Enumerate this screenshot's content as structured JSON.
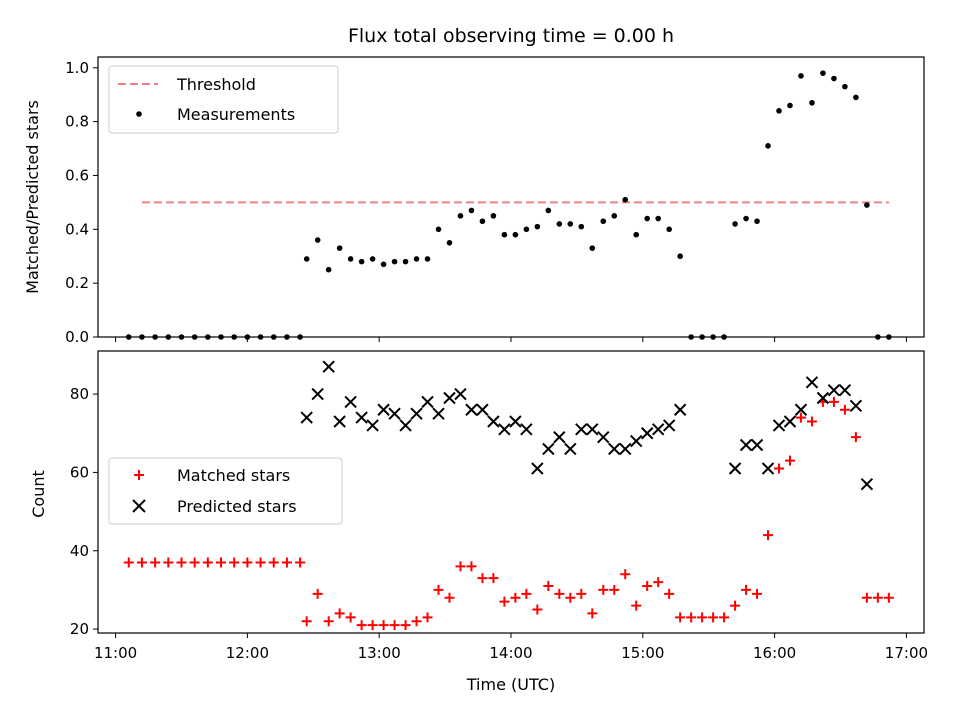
{
  "chart_data": [
    {
      "type": "scatter",
      "title": "Flux total observing time = 0.00 h",
      "xlabel": "",
      "ylabel": "Matched/Predicted stars",
      "xlim": [
        "10:52",
        "17:08"
      ],
      "ylim": [
        0,
        1.04
      ],
      "yticks": [
        "0.0",
        "0.2",
        "0.4",
        "0.6",
        "0.8",
        "1.0"
      ],
      "threshold": {
        "name": "Threshold",
        "value": 0.5,
        "x_start": "11:12",
        "x_end": "16:52",
        "color": "#f08080",
        "style": "dashed"
      },
      "series": [
        {
          "name": "Measurements",
          "color": "#000000",
          "marker": "dot",
          "points": [
            [
              "11:06",
              0
            ],
            [
              "11:12",
              0
            ],
            [
              "11:18",
              0
            ],
            [
              "11:24",
              0
            ],
            [
              "11:30",
              0
            ],
            [
              "11:36",
              0
            ],
            [
              "11:42",
              0
            ],
            [
              "11:48",
              0
            ],
            [
              "11:54",
              0
            ],
            [
              "12:00",
              0
            ],
            [
              "12:06",
              0
            ],
            [
              "12:12",
              0
            ],
            [
              "12:18",
              0
            ],
            [
              "12:24",
              0
            ],
            [
              "12:27",
              0.29
            ],
            [
              "12:32",
              0.36
            ],
            [
              "12:37",
              0.25
            ],
            [
              "12:42",
              0.33
            ],
            [
              "12:47",
              0.29
            ],
            [
              "12:52",
              0.28
            ],
            [
              "12:57",
              0.29
            ],
            [
              "13:02",
              0.27
            ],
            [
              "13:07",
              0.28
            ],
            [
              "13:12",
              0.28
            ],
            [
              "13:17",
              0.29
            ],
            [
              "13:22",
              0.29
            ],
            [
              "13:27",
              0.4
            ],
            [
              "13:32",
              0.35
            ],
            [
              "13:37",
              0.45
            ],
            [
              "13:42",
              0.47
            ],
            [
              "13:47",
              0.43
            ],
            [
              "13:52",
              0.45
            ],
            [
              "13:57",
              0.38
            ],
            [
              "14:02",
              0.38
            ],
            [
              "14:07",
              0.4
            ],
            [
              "14:12",
              0.41
            ],
            [
              "14:17",
              0.47
            ],
            [
              "14:22",
              0.42
            ],
            [
              "14:27",
              0.42
            ],
            [
              "14:32",
              0.41
            ],
            [
              "14:37",
              0.33
            ],
            [
              "14:42",
              0.43
            ],
            [
              "14:47",
              0.45
            ],
            [
              "14:52",
              0.51
            ],
            [
              "14:57",
              0.38
            ],
            [
              "15:02",
              0.44
            ],
            [
              "15:07",
              0.44
            ],
            [
              "15:12",
              0.4
            ],
            [
              "15:17",
              0.3
            ],
            [
              "15:22",
              0
            ],
            [
              "15:27",
              0
            ],
            [
              "15:32",
              0
            ],
            [
              "15:37",
              0
            ],
            [
              "15:42",
              0.42
            ],
            [
              "15:47",
              0.44
            ],
            [
              "15:52",
              0.43
            ],
            [
              "15:57",
              0.71
            ],
            [
              "16:02",
              0.84
            ],
            [
              "16:07",
              0.86
            ],
            [
              "16:12",
              0.97
            ],
            [
              "16:17",
              0.87
            ],
            [
              "16:22",
              0.98
            ],
            [
              "16:27",
              0.96
            ],
            [
              "16:32",
              0.93
            ],
            [
              "16:37",
              0.89
            ],
            [
              "16:42",
              0.49
            ],
            [
              "16:47",
              0
            ],
            [
              "16:52",
              0
            ]
          ]
        }
      ]
    },
    {
      "type": "scatter",
      "title": "",
      "xlabel": "Time (UTC)",
      "ylabel": "Count",
      "xlim": [
        "10:52",
        "17:08"
      ],
      "ylim": [
        19,
        91
      ],
      "yticks": [
        "20",
        "40",
        "60",
        "80"
      ],
      "xticks": [
        "11:00",
        "12:00",
        "13:00",
        "14:00",
        "15:00",
        "16:00",
        "17:00"
      ],
      "series": [
        {
          "name": "Matched stars",
          "color": "#ff0000",
          "marker": "plus",
          "points": [
            [
              "11:06",
              37
            ],
            [
              "11:12",
              37
            ],
            [
              "11:18",
              37
            ],
            [
              "11:24",
              37
            ],
            [
              "11:30",
              37
            ],
            [
              "11:36",
              37
            ],
            [
              "11:42",
              37
            ],
            [
              "11:48",
              37
            ],
            [
              "11:54",
              37
            ],
            [
              "12:00",
              37
            ],
            [
              "12:06",
              37
            ],
            [
              "12:12",
              37
            ],
            [
              "12:18",
              37
            ],
            [
              "12:24",
              37
            ],
            [
              "12:27",
              22
            ],
            [
              "12:32",
              29
            ],
            [
              "12:37",
              22
            ],
            [
              "12:42",
              24
            ],
            [
              "12:47",
              23
            ],
            [
              "12:52",
              21
            ],
            [
              "12:57",
              21
            ],
            [
              "13:02",
              21
            ],
            [
              "13:07",
              21
            ],
            [
              "13:12",
              21
            ],
            [
              "13:17",
              22
            ],
            [
              "13:22",
              23
            ],
            [
              "13:27",
              30
            ],
            [
              "13:32",
              28
            ],
            [
              "13:37",
              36
            ],
            [
              "13:42",
              36
            ],
            [
              "13:47",
              33
            ],
            [
              "13:52",
              33
            ],
            [
              "13:57",
              27
            ],
            [
              "14:02",
              28
            ],
            [
              "14:07",
              29
            ],
            [
              "14:12",
              25
            ],
            [
              "14:17",
              31
            ],
            [
              "14:22",
              29
            ],
            [
              "14:27",
              28
            ],
            [
              "14:32",
              29
            ],
            [
              "14:37",
              24
            ],
            [
              "14:42",
              30
            ],
            [
              "14:47",
              30
            ],
            [
              "14:52",
              34
            ],
            [
              "14:57",
              26
            ],
            [
              "15:02",
              31
            ],
            [
              "15:07",
              32
            ],
            [
              "15:12",
              29
            ],
            [
              "15:17",
              23
            ],
            [
              "15:22",
              23
            ],
            [
              "15:27",
              23
            ],
            [
              "15:32",
              23
            ],
            [
              "15:37",
              23
            ],
            [
              "15:42",
              26
            ],
            [
              "15:47",
              30
            ],
            [
              "15:52",
              29
            ],
            [
              "15:57",
              44
            ],
            [
              "16:02",
              61
            ],
            [
              "16:07",
              63
            ],
            [
              "16:12",
              74
            ],
            [
              "16:17",
              73
            ],
            [
              "16:22",
              78
            ],
            [
              "16:27",
              78
            ],
            [
              "16:32",
              76
            ],
            [
              "16:37",
              69
            ],
            [
              "16:42",
              28
            ],
            [
              "16:47",
              28
            ],
            [
              "16:52",
              28
            ]
          ]
        },
        {
          "name": "Predicted stars",
          "color": "#000000",
          "marker": "x",
          "points": [
            [
              "12:27",
              74
            ],
            [
              "12:32",
              80
            ],
            [
              "12:37",
              87
            ],
            [
              "12:42",
              73
            ],
            [
              "12:47",
              78
            ],
            [
              "12:52",
              74
            ],
            [
              "12:57",
              72
            ],
            [
              "13:02",
              76
            ],
            [
              "13:07",
              75
            ],
            [
              "13:12",
              72
            ],
            [
              "13:17",
              75
            ],
            [
              "13:22",
              78
            ],
            [
              "13:27",
              75
            ],
            [
              "13:32",
              79
            ],
            [
              "13:37",
              80
            ],
            [
              "13:42",
              76
            ],
            [
              "13:47",
              76
            ],
            [
              "13:52",
              73
            ],
            [
              "13:57",
              71
            ],
            [
              "14:02",
              73
            ],
            [
              "14:07",
              71
            ],
            [
              "14:12",
              61
            ],
            [
              "14:17",
              66
            ],
            [
              "14:22",
              69
            ],
            [
              "14:27",
              66
            ],
            [
              "14:32",
              71
            ],
            [
              "14:37",
              71
            ],
            [
              "14:42",
              69
            ],
            [
              "14:47",
              66
            ],
            [
              "14:52",
              66
            ],
            [
              "14:57",
              68
            ],
            [
              "15:02",
              70
            ],
            [
              "15:07",
              71
            ],
            [
              "15:12",
              72
            ],
            [
              "15:17",
              76
            ],
            [
              "15:42",
              61
            ],
            [
              "15:47",
              67
            ],
            [
              "15:52",
              67
            ],
            [
              "15:57",
              61
            ],
            [
              "16:02",
              72
            ],
            [
              "16:07",
              73
            ],
            [
              "16:12",
              76
            ],
            [
              "16:17",
              83
            ],
            [
              "16:22",
              79
            ],
            [
              "16:27",
              81
            ],
            [
              "16:32",
              81
            ],
            [
              "16:37",
              77
            ],
            [
              "16:42",
              57
            ]
          ]
        }
      ]
    }
  ]
}
